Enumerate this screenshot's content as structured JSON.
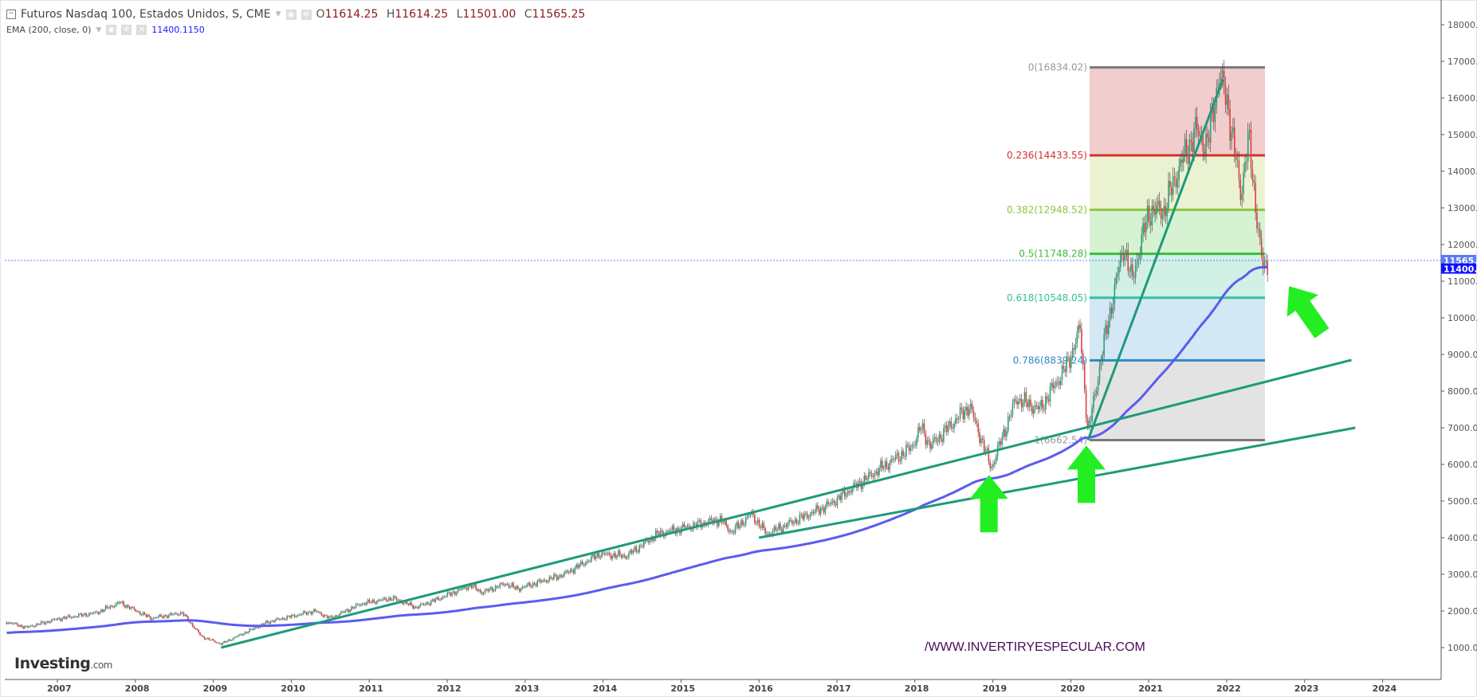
{
  "header": {
    "symbol_title": "Futuros Nasdaq 100, Estados Unidos, S, CME",
    "ohlc": [
      {
        "key": "O",
        "value": "11614.25"
      },
      {
        "key": "H",
        "value": "11614.25"
      },
      {
        "key": "L",
        "value": "11501.00"
      },
      {
        "key": "C",
        "value": "11565.25"
      }
    ],
    "indicator_title": "EMA (200, close, 0)",
    "indicator_value": "11400.1150",
    "collapse_icon": "minus-box-icon"
  },
  "branding": {
    "logo_main": "Investing",
    "logo_suffix": ".com",
    "watermark": "/WWW.INVERTIRYESPECULAR.COM"
  },
  "colors": {
    "up": "#26a17b",
    "down": "#e0403a",
    "ema": "#5b5bf0",
    "trendline": "#1e9a7a",
    "arrow": "#22ee22",
    "price_tag": "#5b7cf0",
    "ema_tag": "#1010ff"
  },
  "chart_data": {
    "type": "candlestick",
    "title": "Futuros Nasdaq 100, Estados Unidos, S, CME",
    "interval": "weekly",
    "ylim": [
      0,
      18500
    ],
    "xlim": [
      2006.35,
      2024.9
    ],
    "y_ticks": [
      "18000.00",
      "17000.00",
      "16000.00",
      "15000.00",
      "14000.00",
      "13000.00",
      "12000.00",
      "11000.00",
      "10000.00",
      "9000.00",
      "8000.00",
      "7000.00",
      "6000.00",
      "5000.00",
      "4000.00",
      "3000.00",
      "2000.00",
      "1000.00"
    ],
    "x_ticks": [
      "2007",
      "2008",
      "2009",
      "2010",
      "2011",
      "2012",
      "2013",
      "2014",
      "2015",
      "2016",
      "2017",
      "2018",
      "2019",
      "2020",
      "2021",
      "2022",
      "2023",
      "2024"
    ],
    "price_path": [
      [
        2006.35,
        1700
      ],
      [
        2006.6,
        1550
      ],
      [
        2007.0,
        1780
      ],
      [
        2007.5,
        1950
      ],
      [
        2007.8,
        2230
      ],
      [
        2008.2,
        1800
      ],
      [
        2008.6,
        1950
      ],
      [
        2008.85,
        1300
      ],
      [
        2009.1,
        1100
      ],
      [
        2009.3,
        1300
      ],
      [
        2009.7,
        1700
      ],
      [
        2010.0,
        1850
      ],
      [
        2010.3,
        2000
      ],
      [
        2010.5,
        1800
      ],
      [
        2010.9,
        2200
      ],
      [
        2011.3,
        2350
      ],
      [
        2011.6,
        2100
      ],
      [
        2011.85,
        2300
      ],
      [
        2012.3,
        2700
      ],
      [
        2012.45,
        2500
      ],
      [
        2012.75,
        2750
      ],
      [
        2012.9,
        2600
      ],
      [
        2013.5,
        3000
      ],
      [
        2013.95,
        3550
      ],
      [
        2014.3,
        3500
      ],
      [
        2014.7,
        4100
      ],
      [
        2015.0,
        4250
      ],
      [
        2015.5,
        4500
      ],
      [
        2015.65,
        4150
      ],
      [
        2015.9,
        4650
      ],
      [
        2016.1,
        4100
      ],
      [
        2016.5,
        4500
      ],
      [
        2016.9,
        4900
      ],
      [
        2017.5,
        5800
      ],
      [
        2017.95,
        6450
      ],
      [
        2018.08,
        7000
      ],
      [
        2018.2,
        6500
      ],
      [
        2018.7,
        7600
      ],
      [
        2018.98,
        5900
      ],
      [
        2019.3,
        7800
      ],
      [
        2019.6,
        7500
      ],
      [
        2019.95,
        8700
      ],
      [
        2020.12,
        9700
      ],
      [
        2020.22,
        6850
      ],
      [
        2020.45,
        9600
      ],
      [
        2020.68,
        12000
      ],
      [
        2020.78,
        11000
      ],
      [
        2021.0,
        12900
      ],
      [
        2021.2,
        12950
      ],
      [
        2021.35,
        13900
      ],
      [
        2021.6,
        15100
      ],
      [
        2021.75,
        14700
      ],
      [
        2021.9,
        16600
      ],
      [
        2022.0,
        16000
      ],
      [
        2022.18,
        13400
      ],
      [
        2022.28,
        14900
      ],
      [
        2022.42,
        12100
      ],
      [
        2022.47,
        11300
      ],
      [
        2022.53,
        11565.25
      ]
    ],
    "ema": {
      "period": 200,
      "last": 11400.12
    },
    "last_price": 11565.25,
    "price_tags": [
      "11565.25",
      "11400.12"
    ],
    "fibonacci": {
      "start_year": 2020.22,
      "end_year": 2022.5,
      "levels": [
        {
          "ratio": 0,
          "price": 16834.02,
          "label": "0(16834.02)",
          "line": "#7a7a7a",
          "fill": "#f2cdcd"
        },
        {
          "ratio": 0.236,
          "price": 14433.55,
          "label": "0.236(14433.55)",
          "line": "#d0322c",
          "fill": "#ebf2d2"
        },
        {
          "ratio": 0.382,
          "price": 12948.52,
          "label": "0.382(12948.52)",
          "line": "#8cc63f",
          "fill": "#d6f2d2"
        },
        {
          "ratio": 0.5,
          "price": 11748.28,
          "label": "0.5(11748.28)",
          "line": "#3dbb3d",
          "fill": "#d2f1e6"
        },
        {
          "ratio": 0.618,
          "price": 10548.05,
          "label": "0.618(10548.05)",
          "line": "#35c29a",
          "fill": "#d3e7f4"
        },
        {
          "ratio": 0.786,
          "price": 8839.24,
          "label": "0.786(8839.24)",
          "line": "#2f8ac6",
          "fill": "#e3e3e3"
        },
        {
          "ratio": 1,
          "price": 6662.54,
          "label": "1(6662.54)",
          "line": "#7a7a7a",
          "fill": null
        }
      ]
    },
    "trendlines": [
      {
        "name": "steep-trendline",
        "from": [
          2020.22,
          6662
        ],
        "to": [
          2021.95,
          16500
        ]
      },
      {
        "name": "mid-trendline",
        "from": [
          2009.1,
          1000
        ],
        "to": [
          2023.6,
          8850
        ]
      },
      {
        "name": "long-trendline",
        "from": [
          2016.0,
          4000
        ],
        "to": [
          2023.65,
          7000
        ]
      }
    ],
    "annotations": [
      {
        "type": "arrow-up",
        "at": [
          2018.95,
          5800
        ]
      },
      {
        "type": "arrow-up",
        "at": [
          2020.2,
          6600
        ]
      },
      {
        "type": "arrow-up-left",
        "at": [
          2022.55,
          11200
        ]
      }
    ]
  }
}
